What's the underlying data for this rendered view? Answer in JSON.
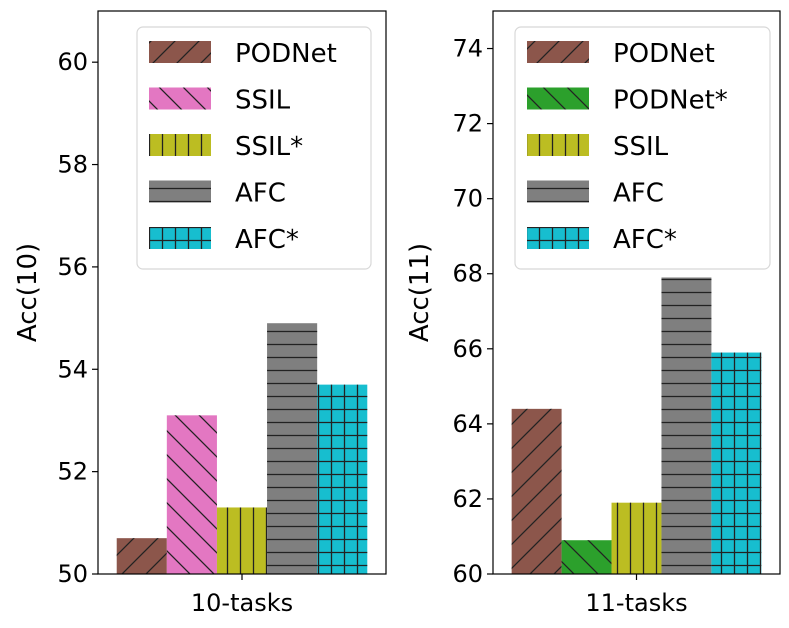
{
  "chart_data": [
    {
      "type": "bar",
      "xlabel": "",
      "ylabel": "Acc(10)",
      "categories": [
        "10-tasks"
      ],
      "ylim": [
        50,
        61
      ],
      "yticks": [
        50,
        52,
        54,
        56,
        58,
        60
      ],
      "series": [
        {
          "name": "PODNet",
          "values": [
            50.7
          ],
          "color": "#8c564b",
          "hatch": "/"
        },
        {
          "name": "SSIL",
          "values": [
            53.1
          ],
          "color": "#e377c2",
          "hatch": "\\"
        },
        {
          "name": "SSIL*",
          "values": [
            51.3
          ],
          "color": "#bcbd22",
          "hatch": "|"
        },
        {
          "name": "AFC",
          "values": [
            54.9
          ],
          "color": "#7f7f7f",
          "hatch": "-"
        },
        {
          "name": "AFC*",
          "values": [
            53.7
          ],
          "color": "#17becf",
          "hatch": "+"
        }
      ],
      "legend_position": "top-right"
    },
    {
      "type": "bar",
      "xlabel": "",
      "ylabel": "Acc(11)",
      "categories": [
        "11-tasks"
      ],
      "ylim": [
        60,
        75
      ],
      "yticks": [
        60,
        62,
        64,
        66,
        68,
        70,
        72,
        74
      ],
      "series": [
        {
          "name": "PODNet",
          "values": [
            64.4
          ],
          "color": "#8c564b",
          "hatch": "/"
        },
        {
          "name": "PODNet*",
          "values": [
            60.9
          ],
          "color": "#2ca02c",
          "hatch": "\\"
        },
        {
          "name": "SSIL",
          "values": [
            61.9
          ],
          "color": "#bcbd22",
          "hatch": "|"
        },
        {
          "name": "AFC",
          "values": [
            67.9
          ],
          "color": "#7f7f7f",
          "hatch": "-"
        },
        {
          "name": "AFC*",
          "values": [
            65.9
          ],
          "color": "#17becf",
          "hatch": "+"
        }
      ],
      "legend_position": "top-right"
    }
  ]
}
